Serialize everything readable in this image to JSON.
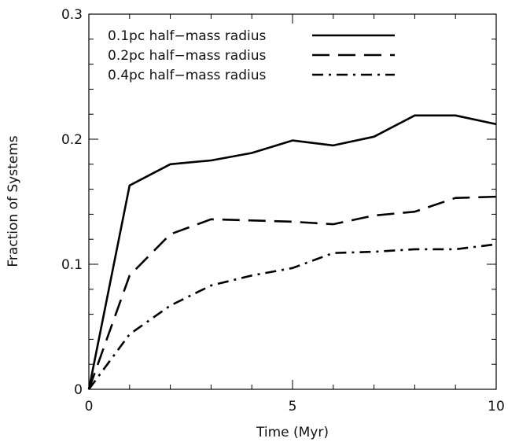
{
  "chart_data": {
    "type": "line",
    "xlabel": "Time (Myr)",
    "ylabel": "Fraction of Systems",
    "xlim": [
      0,
      10
    ],
    "ylim": [
      0,
      0.3
    ],
    "xticks": [
      "0",
      "5",
      "10"
    ],
    "yticks": [
      "0",
      "0.1",
      "0.2",
      "0.3"
    ],
    "grid": false,
    "legend_position": "top-right",
    "x": [
      0,
      1,
      2,
      3,
      4,
      5,
      6,
      7,
      8,
      9,
      10
    ],
    "series": [
      {
        "name": "0.1pc half−mass radius",
        "dash": "solid",
        "color": "#000000",
        "values": [
          0,
          0.163,
          0.18,
          0.183,
          0.189,
          0.199,
          0.195,
          0.202,
          0.219,
          0.219,
          0.212
        ]
      },
      {
        "name": "0.2pc half−mass radius",
        "dash": "dashed",
        "color": "#000000",
        "values": [
          0,
          0.091,
          0.124,
          0.136,
          0.135,
          0.134,
          0.132,
          0.139,
          0.142,
          0.153,
          0.154
        ]
      },
      {
        "name": "0.4pc half−mass radius",
        "dash": "dashdot",
        "color": "#000000",
        "values": [
          0,
          0.044,
          0.067,
          0.083,
          0.091,
          0.097,
          0.109,
          0.11,
          0.112,
          0.112,
          0.116
        ]
      }
    ]
  }
}
